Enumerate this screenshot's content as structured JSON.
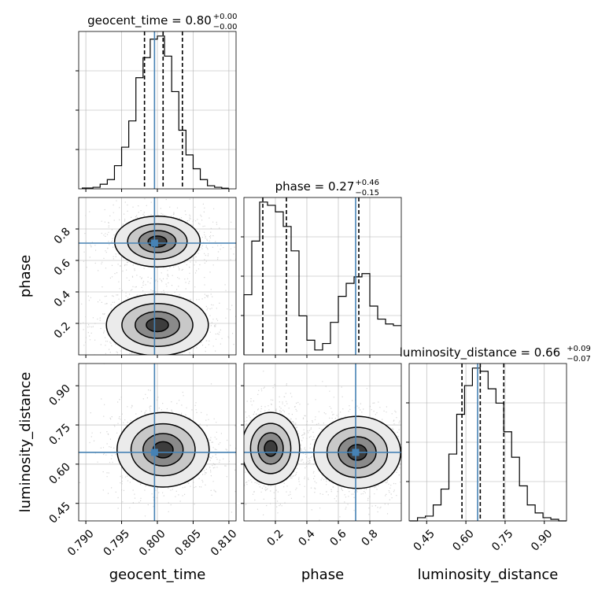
{
  "chart_data": {
    "type": "corner",
    "colors": {
      "truth": "#4682b4",
      "hist": "#000000",
      "grid": "#b0b0b0"
    },
    "parameters": [
      {
        "name": "geocent_time",
        "label": "geocent_time",
        "range": [
          0.789,
          0.811
        ],
        "ticks": [
          0.79,
          0.795,
          0.8,
          0.805,
          0.81
        ],
        "tick_labels": [
          "0.790",
          "0.795",
          "0.800",
          "0.805",
          "0.810"
        ],
        "truth": 0.7996,
        "quantiles": [
          0.7982,
          0.8008,
          0.8035
        ],
        "title_prefix": "geocent_time = 0.80",
        "title_plus": "+0.00",
        "title_minus": "−0.00",
        "hist_edges": [
          0.7895,
          0.79,
          0.791,
          0.792,
          0.793,
          0.794,
          0.795,
          0.796,
          0.797,
          0.798,
          0.799,
          0.8,
          0.801,
          0.802,
          0.803,
          0.804,
          0.805,
          0.806,
          0.807,
          0.808,
          0.809,
          0.81
        ],
        "hist_values": [
          0.005,
          0.005,
          0.01,
          0.03,
          0.06,
          0.15,
          0.27,
          0.44,
          0.72,
          0.85,
          0.97,
          0.99,
          0.86,
          0.63,
          0.38,
          0.22,
          0.13,
          0.06,
          0.02,
          0.01,
          0.004
        ]
      },
      {
        "name": "phase",
        "label": "phase",
        "range": [
          0.0,
          1.0
        ],
        "ticks": [
          0.2,
          0.4,
          0.6,
          0.8
        ],
        "tick_labels": [
          "0.2",
          "0.4",
          "0.6",
          "0.8"
        ],
        "truth": 0.71,
        "quantiles": [
          0.12,
          0.27,
          0.73
        ],
        "title_prefix": "phase = 0.27",
        "title_plus": "+0.46",
        "title_minus": "−0.15",
        "hist_edges": [
          0.0,
          0.05,
          0.1,
          0.15,
          0.2,
          0.25,
          0.3,
          0.35,
          0.4,
          0.45,
          0.5,
          0.55,
          0.6,
          0.65,
          0.7,
          0.75,
          0.8,
          0.85,
          0.9,
          0.95,
          1.0
        ],
        "hist_values": [
          0.37,
          0.7,
          0.94,
          0.92,
          0.88,
          0.79,
          0.64,
          0.24,
          0.09,
          0.03,
          0.07,
          0.2,
          0.36,
          0.44,
          0.48,
          0.5,
          0.3,
          0.22,
          0.19,
          0.18
        ]
      },
      {
        "name": "luminosity_distance",
        "label": "luminosity_distance",
        "range": [
          0.383,
          0.985
        ],
        "ticks": [
          0.45,
          0.6,
          0.75,
          0.9
        ],
        "tick_labels": [
          "0.45",
          "0.60",
          "0.75",
          "0.90"
        ],
        "truth": 0.645,
        "quantiles": [
          0.585,
          0.655,
          0.745
        ],
        "title_prefix": "luminosity_distance = 0.66",
        "title_plus": "+0.09",
        "title_minus": "−0.07",
        "hist_edges": [
          0.385,
          0.415,
          0.445,
          0.475,
          0.505,
          0.535,
          0.565,
          0.595,
          0.625,
          0.655,
          0.685,
          0.715,
          0.745,
          0.775,
          0.805,
          0.835,
          0.865,
          0.895,
          0.925,
          0.955,
          0.985
        ],
        "hist_values": [
          0.0,
          0.02,
          0.03,
          0.1,
          0.2,
          0.42,
          0.67,
          0.85,
          0.96,
          0.94,
          0.83,
          0.74,
          0.56,
          0.4,
          0.22,
          0.1,
          0.05,
          0.02,
          0.01,
          0.0
        ]
      }
    ],
    "pairs": [
      {
        "x": "geocent_time",
        "y": "phase",
        "truth_point": [
          0.7996,
          0.71
        ],
        "modes": [
          {
            "center": [
              0.8,
              0.19
            ],
            "sigma": [
              0.0031,
              0.085
            ]
          },
          {
            "center": [
              0.8,
              0.72
            ],
            "sigma": [
              0.0026,
              0.07
            ]
          }
        ]
      },
      {
        "x": "geocent_time",
        "y": "luminosity_distance",
        "truth_point": [
          0.7996,
          0.645
        ],
        "modes": [
          {
            "center": [
              0.8008,
              0.655
            ],
            "sigma": [
              0.0028,
              0.062
            ]
          }
        ]
      },
      {
        "x": "phase",
        "y": "luminosity_distance",
        "truth_point": [
          0.71,
          0.645
        ],
        "modes": [
          {
            "center": [
              0.17,
              0.66
            ],
            "sigma": [
              0.08,
              0.06
            ]
          },
          {
            "center": [
              0.72,
              0.645
            ],
            "sigma": [
              0.12,
              0.06
            ]
          }
        ]
      }
    ]
  }
}
